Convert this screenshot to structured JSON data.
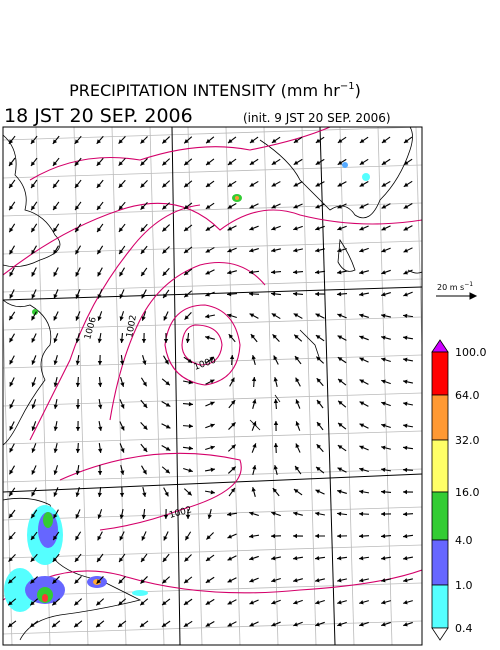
{
  "header": {
    "title": {
      "main": "PRECIPITATION INTENSITY (mm hr",
      "superscript": "−1",
      "close": ")"
    },
    "valid_time": "18 JST 20 SEP. 2006",
    "init_time": "(init. 9 JST 20 SEP. 2006)"
  },
  "wind_reference": {
    "label": "20 m s",
    "superscript": "−1"
  },
  "isobar_labels": [
    "1006",
    "1002",
    "1000",
    "1002"
  ],
  "colorbar": {
    "labels": [
      "100.0",
      "64.0",
      "32.0",
      "16.0",
      "4.0",
      "1.0",
      "0.4"
    ]
  }
}
